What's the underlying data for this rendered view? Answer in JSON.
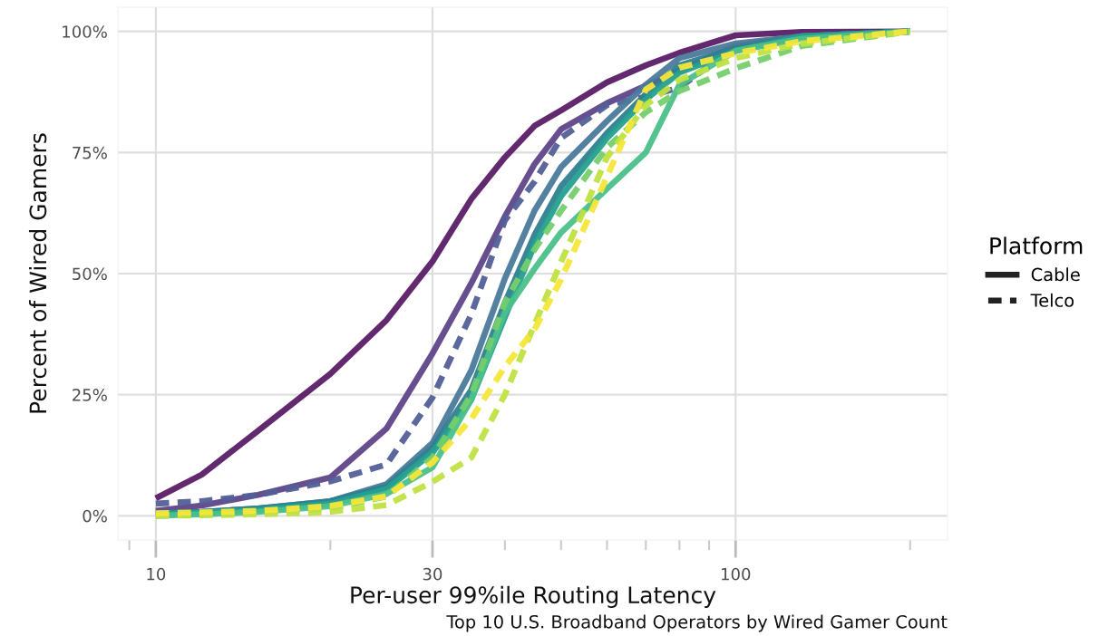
{
  "chart_data": {
    "type": "line",
    "xlabel": "Per-user 99%ile Routing Latency",
    "ylabel": "Percent of Wired Gamers",
    "legend_title": "Platform",
    "annotations": [
      "Top 10 U.S. Broadband Operators by Wired Gamer Count"
    ],
    "x": [
      10,
      12,
      15,
      20,
      25,
      30,
      35,
      40,
      45,
      50,
      60,
      70,
      80,
      100,
      130,
      200
    ],
    "series": [
      {
        "color": "#5b1e66",
        "line_style": "solid",
        "values": [
          3.6,
          8.5,
          17.5,
          29.3,
          40.4,
          52.5,
          65.4,
          74,
          80.5,
          83.7,
          89.5,
          93,
          95.6,
          99.2,
          99.9,
          100
        ]
      },
      {
        "color": "#5e4589",
        "line_style": "solid",
        "values": [
          1,
          2.1,
          4.3,
          7.9,
          18,
          33.5,
          48,
          61.8,
          72.6,
          79.8,
          85.2,
          88.8,
          92,
          97,
          99,
          100
        ]
      },
      {
        "color": "#535f97",
        "line_style": "dashed",
        "values": [
          2.5,
          3,
          4.3,
          7.1,
          10.6,
          24.4,
          41.6,
          61,
          69,
          78,
          84.8,
          86.5,
          88.4,
          97,
          99,
          100
        ]
      },
      {
        "color": "#4a7a9a",
        "line_style": "solid",
        "values": [
          0.5,
          0.8,
          1.5,
          3,
          6.5,
          15,
          30,
          49,
          63,
          72,
          81.5,
          89,
          94.5,
          97.5,
          99,
          100
        ]
      },
      {
        "color": "#2f8090",
        "line_style": "solid",
        "values": [
          0.5,
          0.8,
          1.5,
          3,
          6,
          14,
          26,
          44,
          58,
          68,
          79,
          87,
          93,
          96.5,
          99,
          100
        ]
      },
      {
        "color": "#25a08f",
        "line_style": "solid",
        "values": [
          0.3,
          0.6,
          1.2,
          2.5,
          5.5,
          13,
          24,
          41,
          56,
          66,
          78,
          86,
          91.5,
          96,
          99,
          100
        ]
      },
      {
        "color": "#4cc08a",
        "line_style": "solid",
        "values": [
          0,
          0.3,
          0.8,
          2,
          4.5,
          10,
          24,
          42,
          51,
          58.5,
          67.5,
          75,
          89,
          96,
          98.5,
          100
        ]
      },
      {
        "color": "#74cf6b",
        "line_style": "dashed",
        "values": [
          0,
          0.3,
          0.8,
          1.5,
          4,
          12,
          25,
          44,
          55,
          63,
          76,
          83.3,
          87.7,
          92.4,
          97,
          100
        ]
      },
      {
        "color": "#bfe241",
        "line_style": "dashed",
        "values": [
          0,
          0.1,
          0.3,
          0.8,
          2.2,
          7,
          12,
          25,
          39.5,
          52.4,
          74,
          84.8,
          90,
          94.5,
          97.5,
          100
        ]
      },
      {
        "color": "#f4e63a",
        "line_style": "dashed",
        "values": [
          0.5,
          0.7,
          1,
          2,
          4,
          11,
          20,
          30.8,
          38.5,
          48.8,
          70,
          88,
          92.5,
          95.5,
          98,
          100
        ]
      },
      {
        "name": "Cable",
        "color": "#222222",
        "line_style": "solid",
        "values": [
          null,
          null,
          null,
          null,
          null,
          null,
          null,
          null,
          null,
          null,
          null,
          null,
          null,
          null,
          null,
          null
        ]
      },
      {
        "name": "Telco",
        "color": "#222222",
        "line_style": "dashed",
        "values": [
          null,
          null,
          null,
          null,
          null,
          null,
          null,
          null,
          null,
          null,
          null,
          null,
          null,
          null,
          null,
          null
        ]
      }
    ],
    "log": "x",
    "xlim": [
      8.6,
      232
    ],
    "xticks": [
      {
        "value": 9,
        "label": null
      },
      10,
      {
        "value": 20,
        "label": null
      },
      30,
      {
        "value": 40,
        "label": null
      },
      {
        "value": 50,
        "label": null
      },
      {
        "value": 60,
        "label": null
      },
      {
        "value": 70,
        "label": null
      },
      {
        "value": 80,
        "label": null
      },
      {
        "value": 90,
        "label": null
      },
      100,
      {
        "value": 200,
        "label": null
      }
    ],
    "ylim": [
      -5,
      105
    ],
    "yticks": [
      {
        "value": 0,
        "label": "0%"
      },
      {
        "value": 25,
        "label": "25%"
      },
      {
        "value": 50,
        "label": "50%"
      },
      {
        "value": 75,
        "label": "75%"
      },
      {
        "value": 100,
        "label": "100%"
      }
    ],
    "grid": true,
    "legend": "right",
    "marker": "none"
  }
}
